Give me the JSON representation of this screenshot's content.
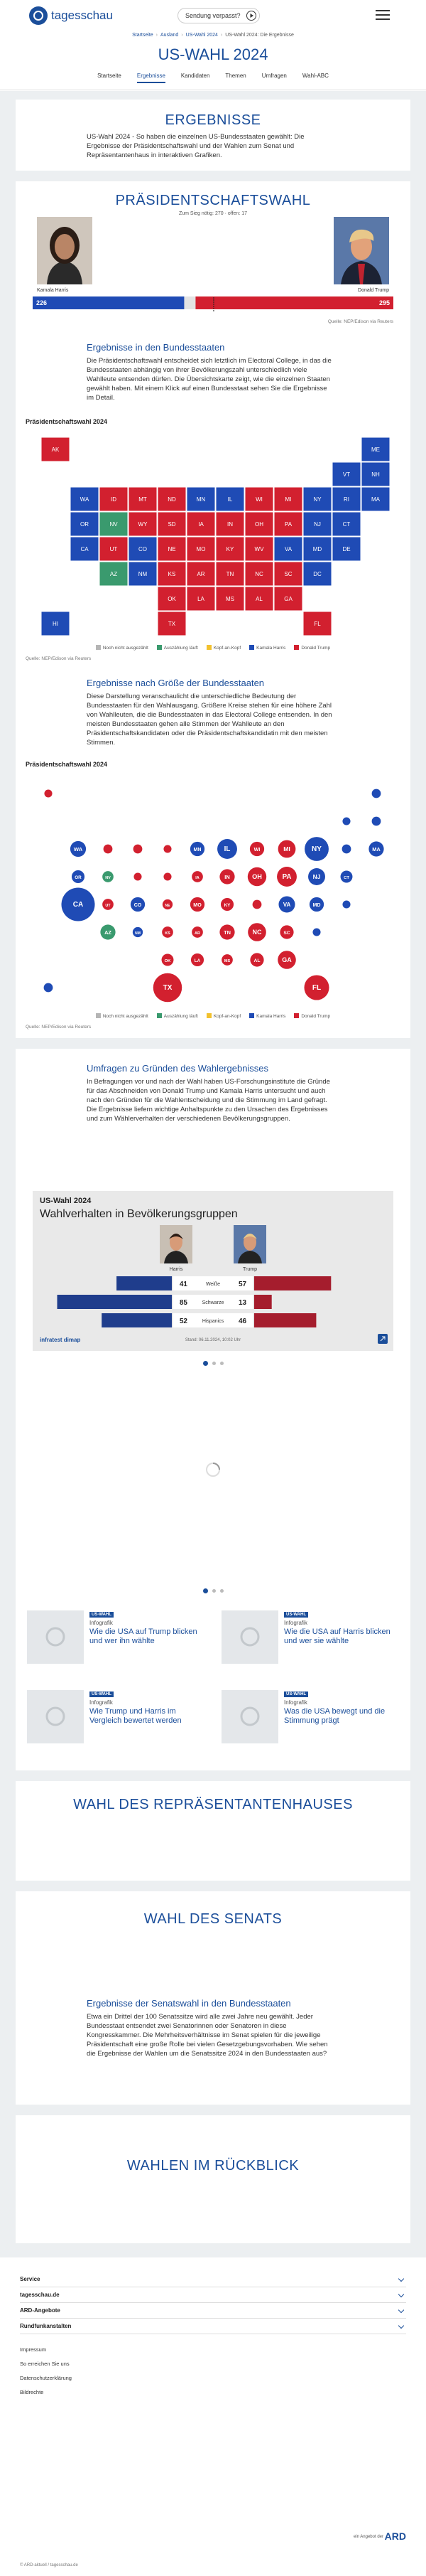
{
  "header": {
    "logo": "tagesschau",
    "missed": "Sendung verpasst?"
  },
  "breadcrumb": [
    "Startseite",
    "Ausland",
    "US-Wahl 2024",
    "US-Wahl 2024: Die Ergebnisse"
  ],
  "page_title": "US-WAHL 2024",
  "nav": [
    "Startseite",
    "Ergebnisse",
    "Kandidaten",
    "Themen",
    "Umfragen",
    "Wahl-ABC"
  ],
  "intro": {
    "title": "ERGEBNISSE",
    "text": "US-Wahl 2024 - So haben die einzelnen US-Bundesstaaten gewählt: Die Ergebnisse der Präsidentschaftswahl und der Wahlen zum Senat und Repräsentantenhaus in interaktiven Grafiken."
  },
  "president": {
    "title": "PRÄSIDENTSCHAFTSWAHL",
    "majority_label": "Zum Sieg nötig:",
    "majority": 270,
    "open_label": "offen:",
    "open": 17,
    "harris_name": "Kamala Harris",
    "harris": 226,
    "trump_name": "Donald Trump",
    "trump": 295,
    "source": "Quelle: NEP/Edison via Reuters"
  },
  "states_section": {
    "heading": "Ergebnisse in den Bundesstaaten",
    "text": "Die Präsidentschaftswahl entscheidet sich letztlich im Electoral College, in das die Bundesstaaten abhängig von ihrer Bevölkerungszahl unterschiedlich viele Wahlleute entsenden dürfen. Die Übersichtskarte zeigt, wie die einzelnen Staaten gewählt haben. Mit einem Klick auf einen Bundesstaat sehen Sie die Ergebnisse im Detail.",
    "chart_title": "Präsidentschaftswahl 2024",
    "source": "Quelle: NEP/Edison via Reuters"
  },
  "size_section": {
    "heading": "Ergebnisse nach Größe der Bundesstaaten",
    "text": "Diese Darstellung veranschaulicht die unterschiedliche Bedeutung der Bundesstaaten für den Wahlausgang. Größere Kreise stehen für eine höhere Zahl von Wahlleuten, die die Bundesstaaten in das Electoral College entsenden. In den meisten Bundesstaaten gehen alle Stimmen der Wahlleute an den Präsidentschaftskandidaten oder die Präsidentschaftskandidatin mit den meisten Stimmen.",
    "chart_title": "Präsidentschaftswahl 2024",
    "source": "Quelle: NEP/Edison via Reuters"
  },
  "legend": [
    {
      "label": "Noch nicht ausgezählt",
      "color": "#b5b5b5"
    },
    {
      "label": "Auszählung läuft",
      "color": "#3a9a6e"
    },
    {
      "label": "Kopf-an-Kopf",
      "color": "#f2c12e"
    },
    {
      "label": "Kamala Harris",
      "color": "#1f4bb5"
    },
    {
      "label": "Donald Trump",
      "color": "#d2202f"
    }
  ],
  "states": [
    {
      "abbr": "AK",
      "status": "Donald Trump",
      "ev": 3
    },
    {
      "abbr": "ME",
      "status": "Kamala Harris",
      "ev": 4
    },
    {
      "abbr": "VT",
      "status": "Kamala Harris",
      "ev": 3
    },
    {
      "abbr": "NH",
      "status": "Kamala Harris",
      "ev": 4
    },
    {
      "abbr": "WA",
      "status": "Kamala Harris",
      "ev": 12
    },
    {
      "abbr": "ID",
      "status": "Donald Trump",
      "ev": 4
    },
    {
      "abbr": "MT",
      "status": "Donald Trump",
      "ev": 4
    },
    {
      "abbr": "ND",
      "status": "Donald Trump",
      "ev": 3
    },
    {
      "abbr": "MN",
      "status": "Kamala Harris",
      "ev": 10
    },
    {
      "abbr": "IL",
      "status": "Kamala Harris",
      "ev": 19
    },
    {
      "abbr": "WI",
      "status": "Donald Trump",
      "ev": 10
    },
    {
      "abbr": "MI",
      "status": "Donald Trump",
      "ev": 15
    },
    {
      "abbr": "NY",
      "status": "Kamala Harris",
      "ev": 28
    },
    {
      "abbr": "RI",
      "status": "Kamala Harris",
      "ev": 4
    },
    {
      "abbr": "MA",
      "status": "Kamala Harris",
      "ev": 11
    },
    {
      "abbr": "OR",
      "status": "Kamala Harris",
      "ev": 8
    },
    {
      "abbr": "NV",
      "status": "Auszählung läuft",
      "ev": 6
    },
    {
      "abbr": "WY",
      "status": "Donald Trump",
      "ev": 3
    },
    {
      "abbr": "SD",
      "status": "Donald Trump",
      "ev": 3
    },
    {
      "abbr": "IA",
      "status": "Donald Trump",
      "ev": 6
    },
    {
      "abbr": "IN",
      "status": "Donald Trump",
      "ev": 11
    },
    {
      "abbr": "OH",
      "status": "Donald Trump",
      "ev": 17
    },
    {
      "abbr": "PA",
      "status": "Donald Trump",
      "ev": 19
    },
    {
      "abbr": "NJ",
      "status": "Kamala Harris",
      "ev": 14
    },
    {
      "abbr": "CT",
      "status": "Kamala Harris",
      "ev": 7
    },
    {
      "abbr": "CA",
      "status": "Kamala Harris",
      "ev": 54
    },
    {
      "abbr": "UT",
      "status": "Donald Trump",
      "ev": 6
    },
    {
      "abbr": "CO",
      "status": "Kamala Harris",
      "ev": 10
    },
    {
      "abbr": "NE",
      "status": "Donald Trump",
      "ev": 5
    },
    {
      "abbr": "MO",
      "status": "Donald Trump",
      "ev": 10
    },
    {
      "abbr": "KY",
      "status": "Donald Trump",
      "ev": 8
    },
    {
      "abbr": "WV",
      "status": "Donald Trump",
      "ev": 4
    },
    {
      "abbr": "VA",
      "status": "Kamala Harris",
      "ev": 13
    },
    {
      "abbr": "MD",
      "status": "Kamala Harris",
      "ev": 10
    },
    {
      "abbr": "DE",
      "status": "Kamala Harris",
      "ev": 3
    },
    {
      "abbr": "AZ",
      "status": "Auszählung läuft",
      "ev": 11
    },
    {
      "abbr": "NM",
      "status": "Kamala Harris",
      "ev": 5
    },
    {
      "abbr": "KS",
      "status": "Donald Trump",
      "ev": 6
    },
    {
      "abbr": "AR",
      "status": "Donald Trump",
      "ev": 6
    },
    {
      "abbr": "TN",
      "status": "Donald Trump",
      "ev": 11
    },
    {
      "abbr": "NC",
      "status": "Donald Trump",
      "ev": 16
    },
    {
      "abbr": "SC",
      "status": "Donald Trump",
      "ev": 9
    },
    {
      "abbr": "DC",
      "status": "Kamala Harris",
      "ev": 3
    },
    {
      "abbr": "OK",
      "status": "Donald Trump",
      "ev": 7
    },
    {
      "abbr": "LA",
      "status": "Donald Trump",
      "ev": 8
    },
    {
      "abbr": "MS",
      "status": "Donald Trump",
      "ev": 6
    },
    {
      "abbr": "AL",
      "status": "Donald Trump",
      "ev": 9
    },
    {
      "abbr": "GA",
      "status": "Donald Trump",
      "ev": 16
    },
    {
      "abbr": "HI",
      "status": "Kamala Harris",
      "ev": 4
    },
    {
      "abbr": "TX",
      "status": "Donald Trump",
      "ev": 40
    },
    {
      "abbr": "FL",
      "status": "Donald Trump",
      "ev": 30
    }
  ],
  "survey": {
    "heading": "Umfragen zu Gründen des Wahlergebnisses",
    "text": "In Befragungen vor und nach der Wahl haben US-Forschungsinstitute die Gründe für das Abschneiden von Donald Trump und Kamala Harris untersucht und auch nach den Gründen für die Wahlentscheidung und die Stimmung im Land gefragt. Die Ergebnisse liefern wichtige Anhaltspunkte zu den Ursachen des Ergebnisses und zum Wählerverhalten der verschiedenen Bevölkerungsgruppen."
  },
  "infographic": {
    "kicker": "US-Wahl 2024",
    "title": "Wahlverhalten in Bevölkerungsgruppen",
    "harris": "Harris",
    "trump": "Trump",
    "harris_color": "#1f3d8c",
    "trump_color": "#a51d2d",
    "rows": [
      {
        "group": "Weiße",
        "harris": 41,
        "trump": 57
      },
      {
        "group": "Schwarze",
        "harris": 85,
        "trump": 13
      },
      {
        "group": "Hispanics",
        "harris": 52,
        "trump": 46
      }
    ],
    "brand": "infratest dimap",
    "stand": "Stand: 06.11.2024, 10:02 Uhr"
  },
  "teasers": [
    {
      "tag": "US-WAHL",
      "kind": "Infografik",
      "title": "Wie die USA auf Trump blicken und wer ihn wählte"
    },
    {
      "tag": "US-WAHL",
      "kind": "Infografik",
      "title": "Wie die USA auf Harris blicken und wer sie wählte"
    },
    {
      "tag": "US-WAHL",
      "kind": "Infografik",
      "title": "Wie Trump und Harris im Vergleich bewertet werden"
    },
    {
      "tag": "US-WAHL",
      "kind": "Infografik",
      "title": "Was die USA bewegt und die Stimmung prägt"
    }
  ],
  "house": {
    "title": "WAHL DES REPRÄSENTANTENHAUSES"
  },
  "senate": {
    "title": "WAHL DES SENATS",
    "heading": "Ergebnisse der Senatswahl in den Bundesstaaten",
    "text": "Etwa ein Drittel der 100 Senatssitze wird alle zwei Jahre neu gewählt. Jeder Bundesstaat entsendet zwei Senatorinnen oder Senatoren in diese Kongresskammer. Die Mehrheitsverhältnisse im Senat spielen für die jeweilige Präsidentschaft eine große Rolle bei vielen Gesetzgebungsvorhaben. Wie sehen die Ergebnisse der Wahlen um die Senatssitze 2024 in den Bundesstaaten aus?"
  },
  "history": {
    "title": "WAHLEN IM RÜCKBLICK"
  },
  "footer": {
    "accordions": [
      "Service",
      "tagesschau.de",
      "ARD-Angebote",
      "Rundfunkanstalten"
    ],
    "links": [
      "Impressum",
      "So erreichen Sie uns",
      "Datenschutzerklärung",
      "Bildrechte"
    ],
    "ard_prefix": "ein Angebot der",
    "ard": "ARD",
    "copyright": "© ARD-aktuell / tagesschau.de"
  }
}
